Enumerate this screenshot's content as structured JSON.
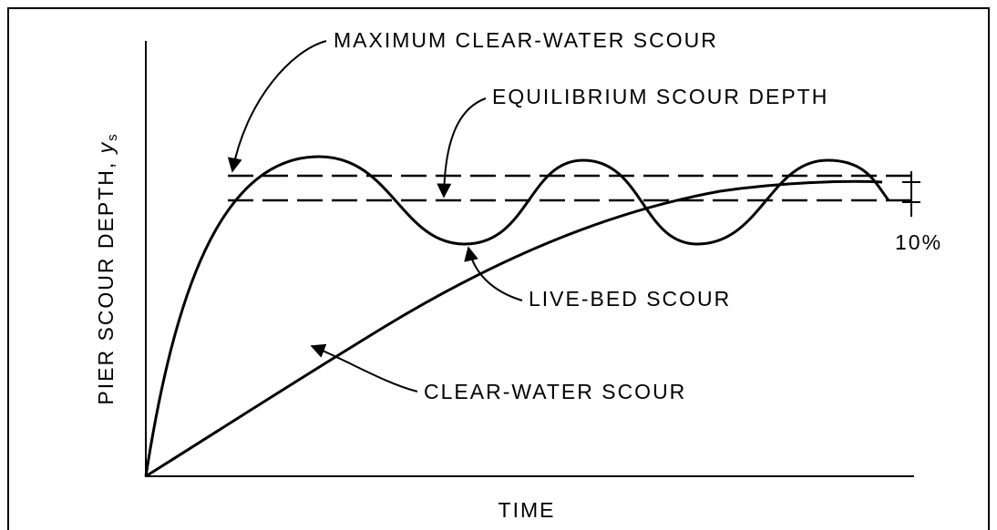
{
  "labels": {
    "max_clear_water": "MAXIMUM CLEAR-WATER SCOUR",
    "equilibrium": "EQUILIBRIUM SCOUR DEPTH",
    "live_bed": "LIVE-BED SCOUR",
    "clear_water": "CLEAR-WATER SCOUR",
    "band": "10%"
  },
  "y_axis": {
    "label": "PIER SCOUR DEPTH, ",
    "symbol": "y",
    "subscript": "s"
  },
  "x_axis": {
    "label": "TIME"
  }
}
